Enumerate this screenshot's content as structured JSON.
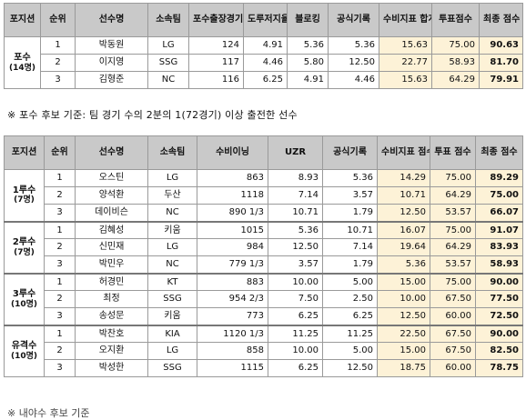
{
  "table1": {
    "headers": [
      "포지션",
      "순위",
      "선수명",
      "소속팀",
      "포수출장경기수",
      "도루저지율",
      "블로킹",
      "공식기록",
      "수비지표 합계 점수",
      "투표점수",
      "최종 점수"
    ],
    "group": {
      "name": "포수",
      "count": "(14명)"
    },
    "rows": [
      [
        "1",
        "박동원",
        "LG",
        "124",
        "4.91",
        "5.36",
        "5.36",
        "15.63",
        "75.00",
        "90.63"
      ],
      [
        "2",
        "이지영",
        "SSG",
        "117",
        "4.46",
        "5.80",
        "12.50",
        "22.77",
        "58.93",
        "81.70"
      ],
      [
        "3",
        "김형준",
        "NC",
        "116",
        "6.25",
        "4.91",
        "4.46",
        "15.63",
        "64.29",
        "79.91"
      ]
    ]
  },
  "note": "※ 포수 후보 기준: 팀 경기 수의 2분의 1(72경기) 이상 출전한 선수",
  "table2": {
    "headers": [
      "포지션",
      "순위",
      "선수명",
      "소속팀",
      "수비이닝",
      "UZR",
      "공식기록",
      "수비지표 점수 합계",
      "투표 점수",
      "최종 점수"
    ],
    "groups": [
      {
        "name": "1루수",
        "count": "(7명)",
        "rows": [
          [
            "1",
            "오스틴",
            "LG",
            "863",
            "8.93",
            "5.36",
            "14.29",
            "75.00",
            "89.29"
          ],
          [
            "2",
            "양석환",
            "두산",
            "1118",
            "7.14",
            "3.57",
            "10.71",
            "64.29",
            "75.00"
          ],
          [
            "3",
            "데이비슨",
            "NC",
            "890 1/3",
            "10.71",
            "1.79",
            "12.50",
            "53.57",
            "66.07"
          ]
        ]
      },
      {
        "name": "2루수",
        "count": "(7명)",
        "rows": [
          [
            "1",
            "김혜성",
            "키움",
            "1015",
            "5.36",
            "10.71",
            "16.07",
            "75.00",
            "91.07"
          ],
          [
            "2",
            "신민재",
            "LG",
            "984",
            "12.50",
            "7.14",
            "19.64",
            "64.29",
            "83.93"
          ],
          [
            "3",
            "박민우",
            "NC",
            "779 1/3",
            "3.57",
            "1.79",
            "5.36",
            "53.57",
            "58.93"
          ]
        ]
      },
      {
        "name": "3루수",
        "count": "(10명)",
        "rows": [
          [
            "1",
            "허경민",
            "KT",
            "883",
            "10.00",
            "5.00",
            "15.00",
            "75.00",
            "90.00"
          ],
          [
            "2",
            "최정",
            "SSG",
            "954 2/3",
            "7.50",
            "2.50",
            "10.00",
            "67.50",
            "77.50"
          ],
          [
            "3",
            "송성문",
            "키움",
            "773",
            "6.25",
            "6.25",
            "12.50",
            "60.00",
            "72.50"
          ]
        ]
      },
      {
        "name": "유격수",
        "count": "(10명)",
        "rows": [
          [
            "1",
            "박찬호",
            "KIA",
            "1120 1/3",
            "11.25",
            "11.25",
            "22.50",
            "67.50",
            "90.00"
          ],
          [
            "2",
            "오지환",
            "LG",
            "858",
            "10.00",
            "5.00",
            "15.00",
            "67.50",
            "82.50"
          ],
          [
            "3",
            "박성한",
            "SSG",
            "1115",
            "6.25",
            "12.50",
            "18.75",
            "60.00",
            "78.75"
          ]
        ]
      }
    ]
  },
  "tail": "※ 내야수 후보 기준"
}
